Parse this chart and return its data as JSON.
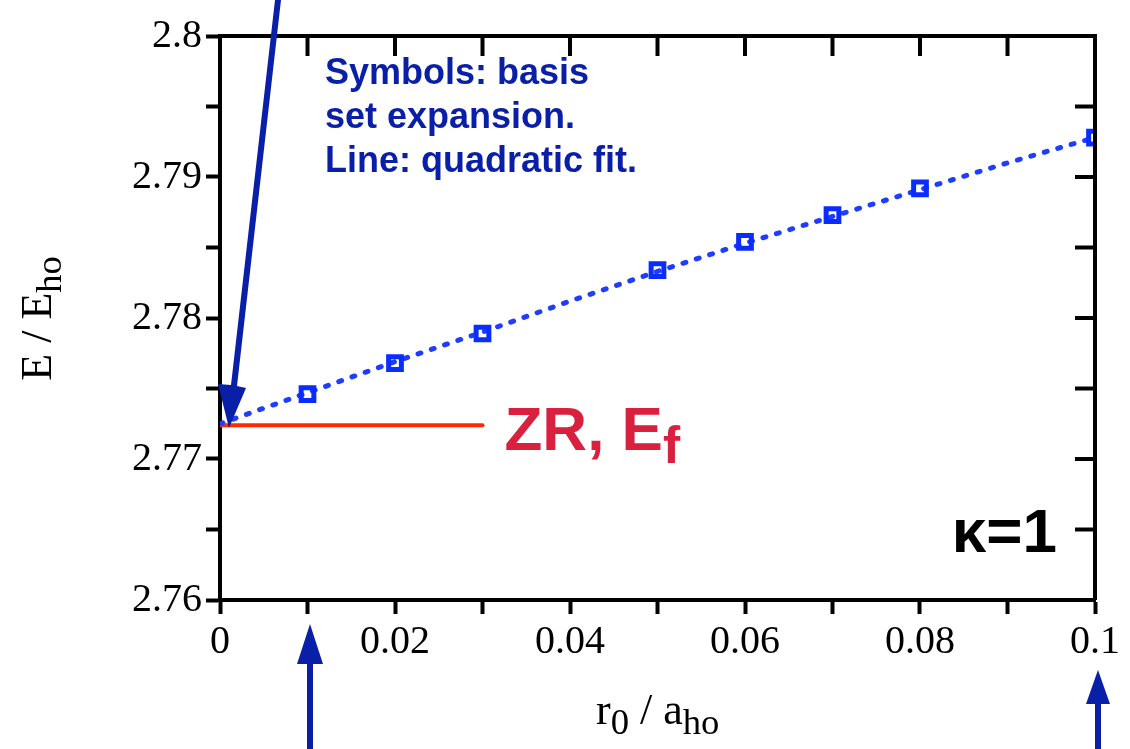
{
  "chart_data": {
    "type": "scatter",
    "xlabel": "r$_{0}$ / a$_{ho}$",
    "ylabel": "E / E$_{ho}$",
    "xlim": [
      0,
      0.1
    ],
    "ylim": [
      2.76,
      2.8
    ],
    "xticks": [
      0,
      {
        "value": 0.01,
        "label": null
      },
      0.02,
      {
        "value": 0.03,
        "label": null
      },
      0.04,
      {
        "value": 0.05,
        "label": null
      },
      0.06,
      {
        "value": 0.07,
        "label": null
      },
      0.08,
      {
        "value": 0.09,
        "label": null
      },
      0.1
    ],
    "yticks": [
      2.76,
      {
        "value": 2.765,
        "label": null
      },
      2.77,
      {
        "value": 2.775,
        "label": null
      },
      2.78,
      {
        "value": 2.785,
        "label": null
      },
      2.79,
      {
        "value": 2.795,
        "label": null
      },
      2.8
    ],
    "legend": false,
    "annotations": [
      "Symbols: basis\nset expansion.\nLine: quadratic fit.",
      "κ=1"
    ],
    "series": [
      {
        "type": "line",
        "color": "#1f3dff",
        "line_style": "dotted",
        "marker": "none",
        "x": [
          0,
          0.01,
          0.02,
          0.03,
          0.04,
          0.05,
          0.06,
          0.07,
          0.08,
          0.09,
          0.1
        ],
        "values": [
          2.7725,
          2.7747,
          2.7769,
          2.779,
          2.7812,
          2.7833,
          2.7853,
          2.7872,
          2.7891,
          2.791,
          2.7928
        ]
      },
      {
        "type": "scatter",
        "color": "#0a2dff",
        "marker": "square",
        "x": [
          0.01,
          0.02,
          0.03,
          0.05,
          0.06,
          0.07,
          0.08,
          0.1
        ],
        "values": [
          2.7746,
          2.7768,
          2.7789,
          2.7834,
          2.7854,
          2.7873,
          2.7892,
          2.7928
        ]
      },
      {
        "type": "line",
        "name": "ZR, E$_{f}$",
        "color": "#ff2a00",
        "line_style": "solid",
        "marker": "none",
        "x": [
          0,
          0.03
        ],
        "values": [
          2.7724,
          2.7724
        ]
      }
    ]
  }
}
